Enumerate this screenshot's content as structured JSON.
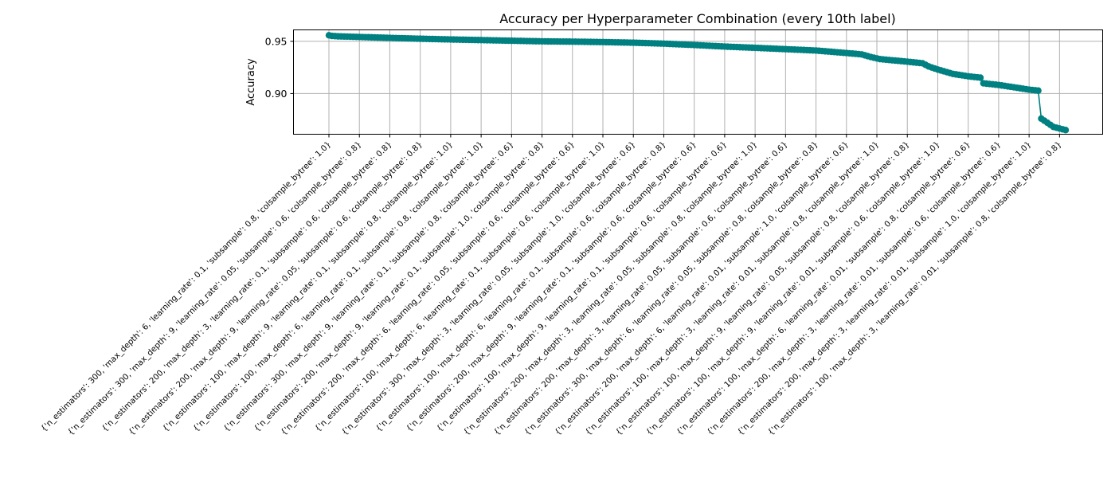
{
  "chart_data": {
    "type": "line",
    "title": "Accuracy per Hyperparameter Combination (every 10th label)",
    "xlabel": "",
    "ylabel": "Accuracy",
    "ylim": [
      0.861,
      0.961
    ],
    "yticks": [
      "0.90",
      "0.95"
    ],
    "ytick_values": [
      0.9,
      0.95
    ],
    "grid": true,
    "line_color": "#008080",
    "marker": "circle",
    "n_points": 243,
    "label_every": 10,
    "xtick_labels": [
      "{'n_estimators': 300, 'max_depth': 6, 'learning_rate': 0.1, 'subsample': 0.8, 'colsample_bytree': 1.0}",
      "{'n_estimators': 300, 'max_depth': 9, 'learning_rate': 0.05, 'subsample': 0.6, 'colsample_bytree': 0.8}",
      "{'n_estimators': 200, 'max_depth': 3, 'learning_rate': 0.1, 'subsample': 0.6, 'colsample_bytree': 0.8}",
      "{'n_estimators': 200, 'max_depth': 9, 'learning_rate': 0.05, 'subsample': 0.6, 'colsample_bytree': 0.8}",
      "{'n_estimators': 100, 'max_depth': 9, 'learning_rate': 0.1, 'subsample': 0.8, 'colsample_bytree': 1.0}",
      "{'n_estimators': 100, 'max_depth': 6, 'learning_rate': 0.1, 'subsample': 0.8, 'colsample_bytree': 1.0}",
      "{'n_estimators': 300, 'max_depth': 9, 'learning_rate': 0.1, 'subsample': 0.8, 'colsample_bytree': 0.6}",
      "{'n_estimators': 200, 'max_depth': 9, 'learning_rate': 0.1, 'subsample': 1.0, 'colsample_bytree': 0.8}",
      "{'n_estimators': 200, 'max_depth': 6, 'learning_rate': 0.05, 'subsample': 0.6, 'colsample_bytree': 0.6}",
      "{'n_estimators': 100, 'max_depth': 6, 'learning_rate': 0.1, 'subsample': 0.6, 'colsample_bytree': 1.0}",
      "{'n_estimators': 300, 'max_depth': 3, 'learning_rate': 0.05, 'subsample': 1.0, 'colsample_bytree': 0.6}",
      "{'n_estimators': 100, 'max_depth': 6, 'learning_rate': 0.1, 'subsample': 0.6, 'colsample_bytree': 0.8}",
      "{'n_estimators': 200, 'max_depth': 9, 'learning_rate': 0.1, 'subsample': 0.6, 'colsample_bytree': 0.6}",
      "{'n_estimators': 100, 'max_depth': 9, 'learning_rate': 0.1, 'subsample': 0.6, 'colsample_bytree': 0.6}",
      "{'n_estimators': 200, 'max_depth': 3, 'learning_rate': 0.05, 'subsample': 0.8, 'colsample_bytree': 1.0}",
      "{'n_estimators': 200, 'max_depth': 3, 'learning_rate': 0.05, 'subsample': 0.6, 'colsample_bytree': 0.6}",
      "{'n_estimators': 300, 'max_depth': 6, 'learning_rate': 0.05, 'subsample': 0.8, 'colsample_bytree': 0.8}",
      "{'n_estimators': 200, 'max_depth': 6, 'learning_rate': 0.01, 'subsample': 1.0, 'colsample_bytree': 0.6}",
      "{'n_estimators': 100, 'max_depth': 3, 'learning_rate': 0.01, 'subsample': 0.8, 'colsample_bytree': 1.0}",
      "{'n_estimators': 100, 'max_depth': 9, 'learning_rate': 0.05, 'subsample': 0.8, 'colsample_bytree': 0.8}",
      "{'n_estimators': 100, 'max_depth': 9, 'learning_rate': 0.01, 'subsample': 0.6, 'colsample_bytree': 1.0}",
      "{'n_estimators': 100, 'max_depth': 6, 'learning_rate': 0.01, 'subsample': 0.8, 'colsample_bytree': 0.6}",
      "{'n_estimators': 200, 'max_depth': 3, 'learning_rate': 0.01, 'subsample': 0.6, 'colsample_bytree': 0.6}",
      "{'n_estimators': 200, 'max_depth': 3, 'learning_rate': 0.01, 'subsample': 1.0, 'colsample_bytree': 1.0}",
      "{'n_estimators': 100, 'max_depth': 3, 'learning_rate': 0.01, 'subsample': 0.8, 'colsample_bytree': 0.8}"
    ],
    "anchors": [
      [
        0,
        0.9558
      ],
      [
        1,
        0.9552
      ],
      [
        3,
        0.9548
      ],
      [
        10,
        0.9542
      ],
      [
        20,
        0.9533
      ],
      [
        30,
        0.9525
      ],
      [
        40,
        0.9518
      ],
      [
        50,
        0.9512
      ],
      [
        60,
        0.9506
      ],
      [
        70,
        0.95
      ],
      [
        80,
        0.9497
      ],
      [
        90,
        0.9493
      ],
      [
        100,
        0.9487
      ],
      [
        110,
        0.9478
      ],
      [
        120,
        0.9465
      ],
      [
        130,
        0.945
      ],
      [
        140,
        0.9438
      ],
      [
        150,
        0.9425
      ],
      [
        160,
        0.9412
      ],
      [
        170,
        0.9388
      ],
      [
        175,
        0.9375
      ],
      [
        178,
        0.935
      ],
      [
        181,
        0.933
      ],
      [
        190,
        0.9305
      ],
      [
        195,
        0.929
      ],
      [
        197,
        0.926
      ],
      [
        200,
        0.923
      ],
      [
        205,
        0.9188
      ],
      [
        210,
        0.9165
      ],
      [
        214,
        0.9152
      ],
      [
        215,
        0.9098
      ],
      [
        220,
        0.9082
      ],
      [
        225,
        0.906
      ],
      [
        230,
        0.9037
      ],
      [
        233,
        0.9028
      ],
      [
        234,
        0.876
      ],
      [
        236,
        0.872
      ],
      [
        238,
        0.868
      ],
      [
        240,
        0.8665
      ],
      [
        242,
        0.865
      ]
    ]
  }
}
